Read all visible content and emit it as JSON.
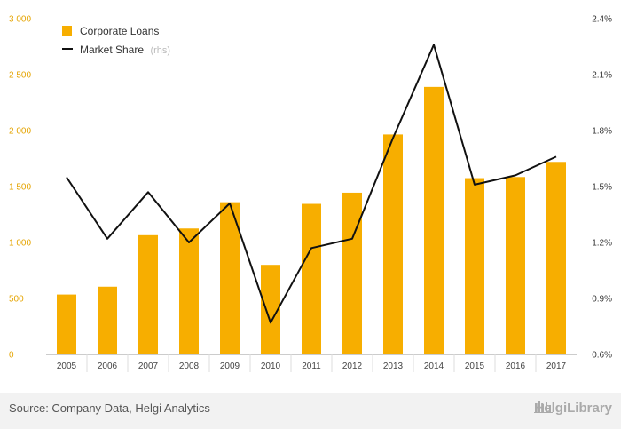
{
  "chart_data": {
    "type": "bar+line",
    "categories": [
      "2005",
      "2006",
      "2007",
      "2008",
      "2009",
      "2010",
      "2011",
      "2012",
      "2013",
      "2014",
      "2015",
      "2016",
      "2017"
    ],
    "series": [
      {
        "name": "Corporate Loans",
        "type": "bar",
        "axis": "left",
        "color": "#f7ae00",
        "values": [
          535,
          605,
          1065,
          1125,
          1360,
          800,
          1345,
          1445,
          1965,
          2390,
          1575,
          1585,
          1720
        ]
      },
      {
        "name": "Market Share",
        "name_suffix": "(rhs)",
        "type": "line",
        "axis": "right",
        "color": "#111111",
        "values": [
          1.55,
          1.22,
          1.47,
          1.2,
          1.41,
          0.77,
          1.17,
          1.22,
          1.76,
          2.26,
          1.51,
          1.56,
          1.66
        ]
      }
    ],
    "y_left": {
      "min": 0,
      "max": 3000,
      "ticks": [
        "0",
        "500",
        "1 000",
        "1 500",
        "2 000",
        "2 500",
        "3 000"
      ]
    },
    "y_right": {
      "min": 0.6,
      "max": 2.4,
      "ticks": [
        "0.6%",
        "0.9%",
        "1.2%",
        "1.5%",
        "1.8%",
        "2.1%",
        "2.4%"
      ]
    },
    "grid": false,
    "legend": "top-left"
  },
  "footer": {
    "source": "Source: Company Data, Helgi Analytics",
    "brand": "HelgiLibrary"
  }
}
